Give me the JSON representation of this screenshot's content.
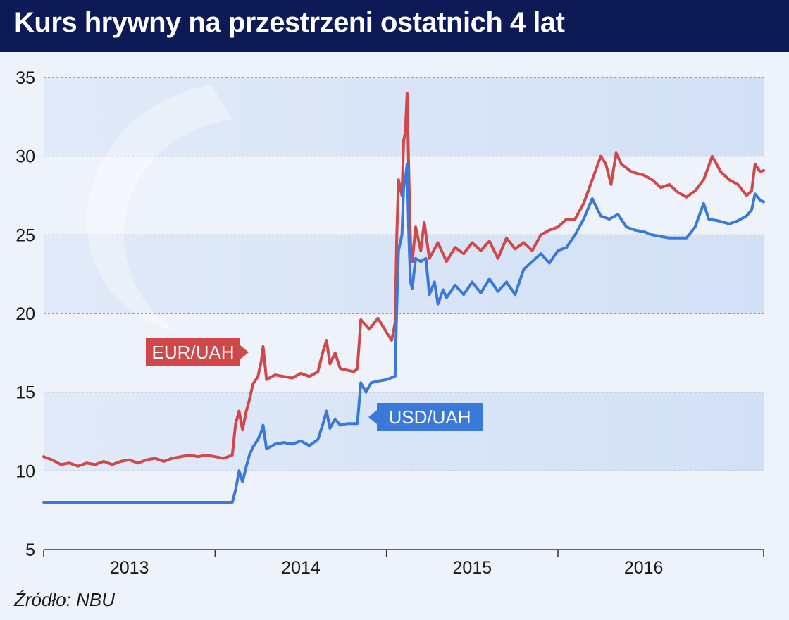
{
  "title": "Kurs hrywny na przestrzeni ostatnich 4 lat",
  "source": "Źródło: NBU",
  "colors": {
    "header_bg": "#0d1a56",
    "eur": "#d1484b",
    "usd": "#3a79d9"
  },
  "chart_data": {
    "type": "line",
    "title": "Kurs hrywny na przestrzeni ostatnich 4 lat",
    "xlabel": "",
    "ylabel": "",
    "xlim": [
      2012.75,
      2016.95
    ],
    "ylim": [
      5,
      35
    ],
    "yticks": [
      5,
      10,
      15,
      20,
      25,
      30,
      35
    ],
    "year_labels": [
      {
        "label": "2013",
        "x": 2013.25
      },
      {
        "label": "2014",
        "x": 2014.25
      },
      {
        "label": "2015",
        "x": 2015.25
      },
      {
        "label": "2016",
        "x": 2016.25
      }
    ],
    "grid": true,
    "series": [
      {
        "name": "EUR/UAH",
        "points": [
          [
            2012.75,
            10.9
          ],
          [
            2012.8,
            10.7
          ],
          [
            2012.85,
            10.4
          ],
          [
            2012.9,
            10.5
          ],
          [
            2012.95,
            10.3
          ],
          [
            2013.0,
            10.5
          ],
          [
            2013.05,
            10.4
          ],
          [
            2013.1,
            10.6
          ],
          [
            2013.15,
            10.4
          ],
          [
            2013.2,
            10.6
          ],
          [
            2013.25,
            10.7
          ],
          [
            2013.3,
            10.5
          ],
          [
            2013.35,
            10.7
          ],
          [
            2013.4,
            10.8
          ],
          [
            2013.45,
            10.6
          ],
          [
            2013.5,
            10.8
          ],
          [
            2013.55,
            10.9
          ],
          [
            2013.6,
            11.0
          ],
          [
            2013.65,
            10.9
          ],
          [
            2013.7,
            11.0
          ],
          [
            2013.75,
            10.9
          ],
          [
            2013.8,
            10.8
          ],
          [
            2013.85,
            11.0
          ],
          [
            2013.87,
            13.0
          ],
          [
            2013.89,
            13.8
          ],
          [
            2013.91,
            12.6
          ],
          [
            2013.93,
            13.7
          ],
          [
            2013.95,
            14.5
          ],
          [
            2013.97,
            15.5
          ],
          [
            2014.0,
            16.0
          ],
          [
            2014.02,
            17.0
          ],
          [
            2014.03,
            17.9
          ],
          [
            2014.05,
            15.8
          ],
          [
            2014.1,
            16.1
          ],
          [
            2014.15,
            16.0
          ],
          [
            2014.2,
            15.9
          ],
          [
            2014.25,
            16.2
          ],
          [
            2014.3,
            16.0
          ],
          [
            2014.35,
            16.3
          ],
          [
            2014.38,
            17.6
          ],
          [
            2014.4,
            18.3
          ],
          [
            2014.42,
            16.8
          ],
          [
            2014.45,
            17.5
          ],
          [
            2014.48,
            16.5
          ],
          [
            2014.52,
            16.4
          ],
          [
            2014.56,
            16.3
          ],
          [
            2014.58,
            16.5
          ],
          [
            2014.6,
            19.6
          ],
          [
            2014.65,
            19.0
          ],
          [
            2014.7,
            19.7
          ],
          [
            2014.75,
            18.8
          ],
          [
            2014.78,
            18.3
          ],
          [
            2014.8,
            19.4
          ],
          [
            2014.81,
            25.0
          ],
          [
            2014.82,
            28.5
          ],
          [
            2014.84,
            27.5
          ],
          [
            2014.85,
            31.0
          ],
          [
            2014.86,
            31.5
          ],
          [
            2014.87,
            34.0
          ],
          [
            2014.88,
            29.0
          ],
          [
            2014.89,
            24.5
          ],
          [
            2014.9,
            23.3
          ],
          [
            2014.92,
            25.5
          ],
          [
            2014.95,
            24.0
          ],
          [
            2014.97,
            25.8
          ],
          [
            2015.0,
            23.5
          ],
          [
            2015.05,
            24.5
          ],
          [
            2015.1,
            23.3
          ],
          [
            2015.15,
            24.2
          ],
          [
            2015.2,
            23.8
          ],
          [
            2015.25,
            24.5
          ],
          [
            2015.3,
            24.0
          ],
          [
            2015.35,
            24.6
          ],
          [
            2015.4,
            23.5
          ],
          [
            2015.45,
            24.8
          ],
          [
            2015.5,
            24.1
          ],
          [
            2015.55,
            24.5
          ],
          [
            2015.6,
            24.0
          ],
          [
            2015.65,
            25.0
          ],
          [
            2015.7,
            25.3
          ],
          [
            2015.75,
            25.5
          ],
          [
            2015.8,
            26.0
          ],
          [
            2015.85,
            26.0
          ],
          [
            2015.9,
            27.0
          ],
          [
            2015.95,
            28.5
          ],
          [
            2016.0,
            30.0
          ],
          [
            2016.03,
            29.5
          ],
          [
            2016.06,
            28.2
          ],
          [
            2016.09,
            30.2
          ],
          [
            2016.12,
            29.5
          ],
          [
            2016.18,
            29.0
          ],
          [
            2016.25,
            28.8
          ],
          [
            2016.3,
            28.5
          ],
          [
            2016.35,
            28.0
          ],
          [
            2016.4,
            28.2
          ],
          [
            2016.45,
            27.7
          ],
          [
            2016.5,
            27.4
          ],
          [
            2016.55,
            27.8
          ],
          [
            2016.6,
            28.5
          ],
          [
            2016.65,
            30.0
          ],
          [
            2016.7,
            29.0
          ],
          [
            2016.75,
            28.5
          ],
          [
            2016.8,
            28.2
          ],
          [
            2016.85,
            27.5
          ],
          [
            2016.88,
            27.8
          ],
          [
            2016.9,
            29.5
          ],
          [
            2016.93,
            29.0
          ],
          [
            2016.95,
            29.1
          ]
        ]
      },
      {
        "name": "USD/UAH",
        "points": [
          [
            2012.75,
            8.0
          ],
          [
            2013.0,
            8.0
          ],
          [
            2013.25,
            8.0
          ],
          [
            2013.5,
            8.0
          ],
          [
            2013.75,
            8.0
          ],
          [
            2013.85,
            8.0
          ],
          [
            2013.87,
            8.8
          ],
          [
            2013.89,
            10.0
          ],
          [
            2013.91,
            9.3
          ],
          [
            2013.93,
            10.2
          ],
          [
            2013.95,
            11.0
          ],
          [
            2013.97,
            11.5
          ],
          [
            2014.0,
            12.0
          ],
          [
            2014.02,
            12.5
          ],
          [
            2014.03,
            12.9
          ],
          [
            2014.05,
            11.4
          ],
          [
            2014.1,
            11.7
          ],
          [
            2014.15,
            11.8
          ],
          [
            2014.2,
            11.7
          ],
          [
            2014.25,
            11.9
          ],
          [
            2014.3,
            11.6
          ],
          [
            2014.35,
            12.0
          ],
          [
            2014.38,
            13.0
          ],
          [
            2014.4,
            13.8
          ],
          [
            2014.42,
            12.7
          ],
          [
            2014.45,
            13.3
          ],
          [
            2014.48,
            12.9
          ],
          [
            2014.52,
            13.0
          ],
          [
            2014.58,
            13.0
          ],
          [
            2014.6,
            15.6
          ],
          [
            2014.63,
            15.0
          ],
          [
            2014.66,
            15.6
          ],
          [
            2014.7,
            15.7
          ],
          [
            2014.75,
            15.8
          ],
          [
            2014.8,
            16.0
          ],
          [
            2014.81,
            20.5
          ],
          [
            2014.82,
            24.0
          ],
          [
            2014.84,
            25.0
          ],
          [
            2014.85,
            28.0
          ],
          [
            2014.86,
            28.5
          ],
          [
            2014.87,
            29.5
          ],
          [
            2014.88,
            25.0
          ],
          [
            2014.89,
            22.0
          ],
          [
            2014.9,
            21.6
          ],
          [
            2014.92,
            23.5
          ],
          [
            2014.95,
            23.3
          ],
          [
            2014.98,
            23.5
          ],
          [
            2015.0,
            21.2
          ],
          [
            2015.03,
            22.0
          ],
          [
            2015.05,
            20.6
          ],
          [
            2015.08,
            21.5
          ],
          [
            2015.1,
            21.0
          ],
          [
            2015.15,
            21.8
          ],
          [
            2015.2,
            21.2
          ],
          [
            2015.25,
            22.0
          ],
          [
            2015.3,
            21.3
          ],
          [
            2015.35,
            22.2
          ],
          [
            2015.4,
            21.4
          ],
          [
            2015.45,
            22.0
          ],
          [
            2015.5,
            21.2
          ],
          [
            2015.55,
            22.8
          ],
          [
            2015.6,
            23.3
          ],
          [
            2015.65,
            23.8
          ],
          [
            2015.7,
            23.2
          ],
          [
            2015.75,
            24.0
          ],
          [
            2015.8,
            24.2
          ],
          [
            2015.85,
            25.0
          ],
          [
            2015.9,
            26.0
          ],
          [
            2015.95,
            27.3
          ],
          [
            2016.0,
            26.2
          ],
          [
            2016.05,
            26.0
          ],
          [
            2016.1,
            26.3
          ],
          [
            2016.15,
            25.5
          ],
          [
            2016.2,
            25.3
          ],
          [
            2016.25,
            25.2
          ],
          [
            2016.3,
            25.0
          ],
          [
            2016.35,
            24.9
          ],
          [
            2016.4,
            24.8
          ],
          [
            2016.45,
            24.8
          ],
          [
            2016.5,
            24.8
          ],
          [
            2016.55,
            25.5
          ],
          [
            2016.6,
            27.0
          ],
          [
            2016.63,
            26.0
          ],
          [
            2016.68,
            25.9
          ],
          [
            2016.75,
            25.7
          ],
          [
            2016.8,
            25.9
          ],
          [
            2016.85,
            26.2
          ],
          [
            2016.88,
            26.6
          ],
          [
            2016.9,
            27.6
          ],
          [
            2016.93,
            27.2
          ],
          [
            2016.95,
            27.1
          ]
        ]
      }
    ]
  }
}
